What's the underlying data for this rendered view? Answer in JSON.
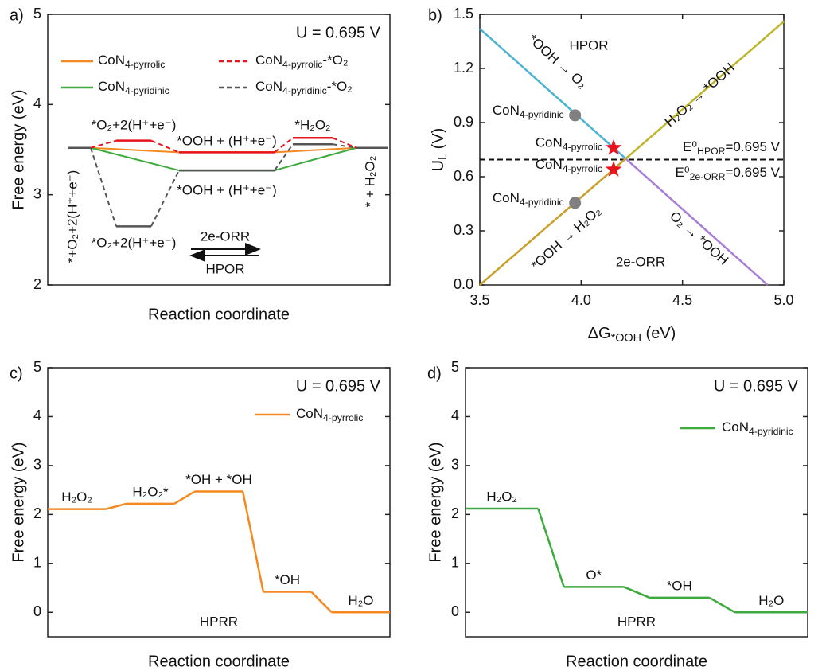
{
  "chart_data": [
    {
      "type": "energy-steps",
      "panel_label": "a)",
      "annotation": "U = 0.695 V",
      "xlabel": "Reaction coordinate",
      "ylabel": "Free energy (eV)",
      "ylim": [
        2,
        5
      ],
      "yticks": [
        2,
        3,
        4,
        5
      ],
      "series": [
        {
          "name": "CoN4-pyrrolic",
          "color": "#f5891f",
          "style": "solid",
          "x": [
            0,
            2,
            4
          ],
          "values": [
            3.52,
            3.47,
            3.52
          ]
        },
        {
          "name": "CoN4-pyridinic",
          "color": "#3daa3d",
          "style": "solid",
          "x": [
            0,
            2,
            4
          ],
          "values": [
            3.52,
            3.27,
            3.52
          ]
        },
        {
          "name": "CoN4-pyrrolic-*O₂",
          "color": "#e8141c",
          "style": "dashed",
          "x": [
            0,
            1,
            2,
            3,
            4
          ],
          "values": [
            3.52,
            3.6,
            3.47,
            3.63,
            3.52
          ]
        },
        {
          "name": "CoN4-pyridinic-*O₂",
          "color": "#555555",
          "style": "dashed",
          "x": [
            0,
            1,
            2,
            3,
            4
          ],
          "values": [
            3.52,
            2.65,
            3.27,
            3.56,
            3.52
          ]
        }
      ],
      "state_labels": [
        "*O₂+2(H⁺+e⁻)",
        "*OOH + (H⁺+e⁻)",
        "*H₂O₂",
        "*OOH + (H⁺+e⁻)",
        "*O₂+2(H⁺+e⁻)",
        "*+O₂+2(H⁺+e⁻)",
        "* + H₂O₂"
      ],
      "arrows": [
        "2e-ORR",
        "HPOR"
      ]
    },
    {
      "type": "line",
      "panel_label": "b)",
      "xlabel": "ΔG*OOH (eV)",
      "ylabel": "UL (V)",
      "xlim": [
        3.5,
        5
      ],
      "xticks": [
        3.5,
        {
          "value": 4,
          "label": "4.0"
        },
        4.5,
        {
          "value": 5,
          "label": "5.0"
        }
      ],
      "ylim": [
        0,
        1.5
      ],
      "yticks": [
        {
          "value": 0,
          "label": "0.0"
        },
        0.3,
        0.6,
        0.9,
        1.2,
        1.5
      ],
      "series": [
        {
          "name": "*OOH → O₂",
          "color": "#4bb3d3",
          "x": [
            3.5,
            4.22
          ],
          "values": [
            1.42,
            0.7
          ]
        },
        {
          "name": "O₂ → *OOH",
          "color": "#a77dd6",
          "x": [
            4.22,
            4.92
          ],
          "values": [
            0.7,
            0
          ]
        },
        {
          "name": "*OOH → H₂O₂",
          "color": "#c9a02c",
          "x": [
            3.5,
            4.22
          ],
          "values": [
            0,
            0.7
          ]
        },
        {
          "name": "H₂O₂ → *OOH",
          "color": "#bdb52a",
          "x": [
            4.22,
            5
          ],
          "values": [
            0.7,
            1.46
          ]
        }
      ],
      "points": [
        {
          "name": "CoN4-pyridinic",
          "color": "#808080",
          "marker": "circle",
          "x": 3.97,
          "y": 0.94
        },
        {
          "name": "CoN4-pyrrolic",
          "color": "#e8141c",
          "marker": "star",
          "x": 4.16,
          "y": 0.76
        },
        {
          "name": "CoN4-pyrrolic",
          "color": "#e8141c",
          "marker": "star",
          "x": 4.16,
          "y": 0.64
        },
        {
          "name": "CoN4-pyridinic",
          "color": "#808080",
          "marker": "circle",
          "x": 3.97,
          "y": 0.455
        }
      ],
      "hline": 0.695,
      "annotations": [
        "HPOR",
        "2e-ORR",
        "E⁰HPOR=0.695 V",
        "E⁰2e-ORR=0.695 V"
      ]
    },
    {
      "type": "energy-levels",
      "panel_label": "c)",
      "annotation": "U = 0.695 V",
      "note": "HPRR",
      "xlabel": "Reaction coordinate",
      "ylabel": "Free energy (eV)",
      "ylim": [
        -0.5,
        5
      ],
      "yticks": [
        0,
        1,
        2,
        3,
        4,
        5
      ],
      "name": "CoN4-pyrrolic",
      "color": "#f5891f",
      "categories": [
        "H₂O₂",
        "H₂O₂*",
        "*OH + *OH",
        "*OH",
        "H₂O"
      ],
      "values": [
        2.11,
        2.22,
        2.47,
        0.42,
        0
      ]
    },
    {
      "type": "energy-levels",
      "panel_label": "d)",
      "annotation": "U = 0.695 V",
      "note": "HPRR",
      "xlabel": "Reaction coordinate",
      "ylabel": "Free energy (eV)",
      "ylim": [
        -0.5,
        5
      ],
      "yticks": [
        0,
        1,
        2,
        3,
        4,
        5
      ],
      "name": "CoN4-pyridinic",
      "color": "#3daa3d",
      "categories": [
        "H₂O₂",
        "O*",
        "*OH",
        "H₂O"
      ],
      "values": [
        2.12,
        0.52,
        0.3,
        0
      ]
    }
  ]
}
